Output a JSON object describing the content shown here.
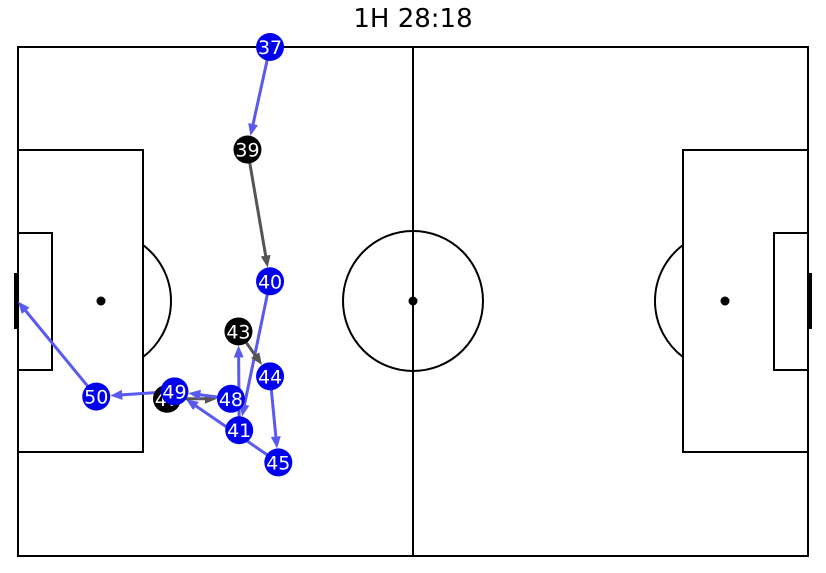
{
  "title": "1H 28:18",
  "colors": {
    "team_a": "#0000ee",
    "team_b": "#000000",
    "pass_a": "#5a5af0",
    "pass_b": "#555555",
    "label": "#ffffff",
    "lines": "#000000"
  },
  "pitch": {
    "length_m": 105,
    "width_m": 68
  },
  "events": [
    {
      "id": "37",
      "team": "a",
      "x": 33.5,
      "y": 68.0
    },
    {
      "id": "39",
      "team": "b",
      "x": 30.5,
      "y": 54.3
    },
    {
      "id": "40",
      "team": "a",
      "x": 33.5,
      "y": 36.7
    },
    {
      "id": "41",
      "team": "a",
      "x": 29.4,
      "y": 16.8
    },
    {
      "id": "43",
      "team": "b",
      "x": 29.3,
      "y": 30.0
    },
    {
      "id": "44",
      "team": "a",
      "x": 33.5,
      "y": 24.0
    },
    {
      "id": "45",
      "team": "a",
      "x": 34.6,
      "y": 12.5
    },
    {
      "id": "47",
      "team": "b",
      "x": 19.8,
      "y": 21.0
    },
    {
      "id": "48",
      "team": "a",
      "x": 28.3,
      "y": 21.0
    },
    {
      "id": "49",
      "team": "a",
      "x": 20.8,
      "y": 22.0
    },
    {
      "id": "50",
      "team": "a",
      "x": 10.4,
      "y": 21.3
    }
  ],
  "passes": [
    {
      "team": "a",
      "x1": 33.5,
      "y1": 68.0,
      "x2": 30.5,
      "y2": 54.3
    },
    {
      "team": "b",
      "x1": 30.5,
      "y1": 54.3,
      "x2": 33.5,
      "y2": 36.7
    },
    {
      "team": "a",
      "x1": 33.5,
      "y1": 36.7,
      "x2": 29.4,
      "y2": 16.8
    },
    {
      "team": "a",
      "x1": 29.4,
      "y1": 16.8,
      "x2": 29.3,
      "y2": 30.0
    },
    {
      "team": "b",
      "x1": 29.3,
      "y1": 30.0,
      "x2": 33.5,
      "y2": 24.0
    },
    {
      "team": "a",
      "x1": 33.5,
      "y1": 24.0,
      "x2": 34.6,
      "y2": 12.5
    },
    {
      "team": "a",
      "x1": 34.6,
      "y1": 12.5,
      "x2": 20.8,
      "y2": 22.0
    },
    {
      "team": "b",
      "x1": 19.8,
      "y1": 21.0,
      "x2": 28.3,
      "y2": 21.0
    },
    {
      "team": "a",
      "x1": 28.3,
      "y1": 21.0,
      "x2": 20.8,
      "y2": 22.0
    },
    {
      "team": "a",
      "x1": 20.8,
      "y1": 22.0,
      "x2": 10.4,
      "y2": 21.3
    },
    {
      "team": "a",
      "x1": 10.4,
      "y1": 21.3,
      "x2": 0.0,
      "y2": 34.0
    }
  ]
}
